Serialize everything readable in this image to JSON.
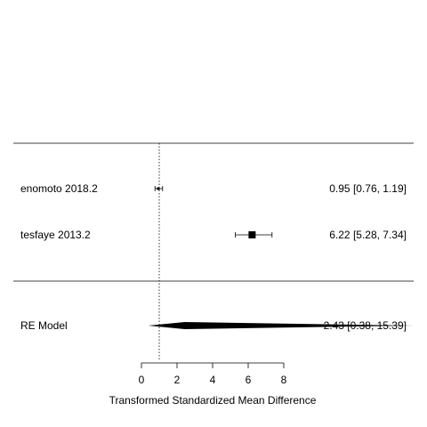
{
  "chart_data": {
    "type": "forest",
    "xlabel": "Transformed Standardized Mean Difference",
    "x_ticks": [
      0,
      2,
      4,
      6,
      8
    ],
    "reference_line": 1,
    "studies": [
      {
        "label": "enomoto 2018.2",
        "estimate": 0.95,
        "ci_low": 0.76,
        "ci_high": 1.19,
        "text": "0.95 [0.76,  1.19]"
      },
      {
        "label": "tesfaye 2013.2",
        "estimate": 6.22,
        "ci_low": 5.28,
        "ci_high": 7.34,
        "text": "6.22 [5.28,  7.34]"
      }
    ],
    "summary": {
      "label": "RE Model",
      "estimate": 2.43,
      "ci_low": 0.38,
      "ci_high": 15.39,
      "text": "2.43 [0.38, 15.39]"
    }
  }
}
